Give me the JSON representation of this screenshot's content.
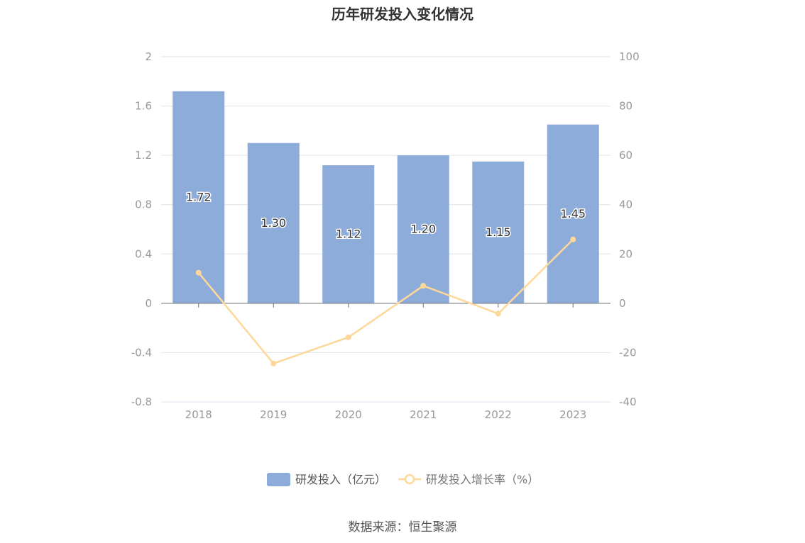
{
  "title": "历年研发投入变化情况",
  "source": "数据来源：恒生聚源",
  "colors": {
    "bar": "#8eacd9",
    "line": "#fdd89a",
    "grid": "#e0e3ee",
    "axis_text": "#999999",
    "bar_label": "#333333"
  },
  "chart_data": {
    "type": "bar",
    "title": "历年研发投入变化情况",
    "categories": [
      "2018",
      "2019",
      "2020",
      "2021",
      "2022",
      "2023"
    ],
    "series": [
      {
        "name": "研发投入（亿元）",
        "type": "bar",
        "axis": "left",
        "values": [
          1.72,
          1.3,
          1.12,
          1.2,
          1.15,
          1.45
        ],
        "labels": [
          "1.72",
          "1.30",
          "1.12",
          "1.20",
          "1.15",
          "1.45"
        ]
      },
      {
        "name": "研发投入增长率（%）",
        "type": "line",
        "axis": "right",
        "values": [
          12.4,
          -24.4,
          -13.8,
          7.1,
          -4.2,
          25.9
        ]
      }
    ],
    "left_axis": {
      "min": -0.8,
      "max": 2,
      "ticks": [
        "2",
        "1.6",
        "1.2",
        "0.8",
        "0.4",
        "0",
        "-0.4",
        "-0.8"
      ]
    },
    "right_axis": {
      "min": -40,
      "max": 100,
      "ticks": [
        "100",
        "80",
        "60",
        "40",
        "20",
        "0",
        "-20",
        "-40"
      ]
    },
    "grid": true,
    "legend_position": "bottom"
  }
}
